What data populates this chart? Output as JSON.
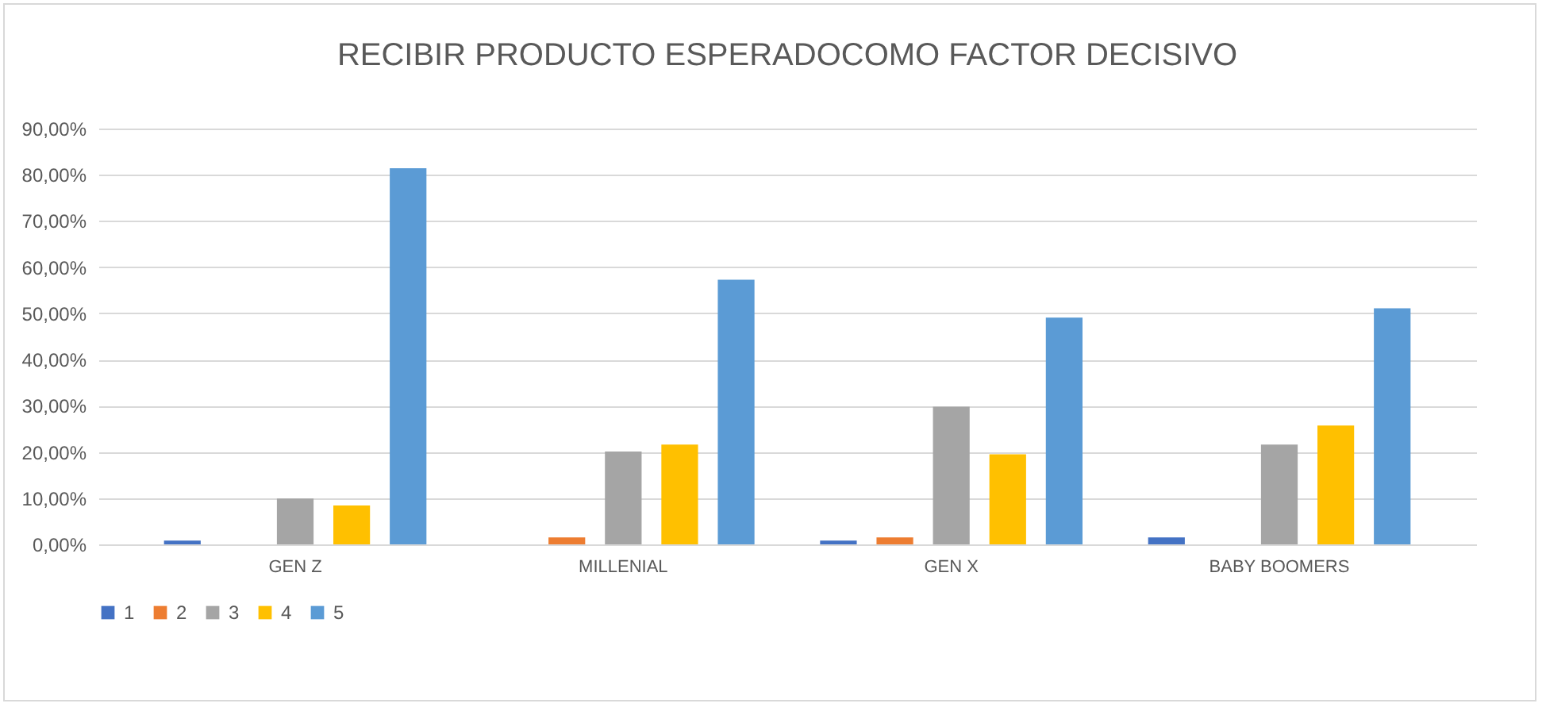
{
  "chart_data": {
    "type": "bar",
    "title": "RECIBIR PRODUCTO ESPERADOCOMO FACTOR DECISIVO",
    "categories": [
      "GEN Z",
      "MILLENIAL",
      "GEN X",
      "BABY BOOMERS"
    ],
    "series": [
      {
        "name": "1",
        "color": "#4472c4",
        "values": [
          0.8,
          0,
          0.8,
          1.5
        ]
      },
      {
        "name": "2",
        "color": "#ed7d31",
        "values": [
          0,
          1.5,
          1.5,
          0
        ]
      },
      {
        "name": "3",
        "color": "#a5a5a5",
        "values": [
          9.9,
          20.1,
          29.8,
          21.6
        ]
      },
      {
        "name": "4",
        "color": "#ffc000",
        "values": [
          8.4,
          21.6,
          19.5,
          25.7
        ]
      },
      {
        "name": "5",
        "color": "#5b9bd5",
        "values": [
          81.4,
          57.3,
          49.1,
          51.1
        ]
      }
    ],
    "ylim": [
      0,
      90
    ],
    "yticks": [
      {
        "value": 0,
        "label": "0,00%"
      },
      {
        "value": 10,
        "label": "10,00%"
      },
      {
        "value": 20,
        "label": "20,00%"
      },
      {
        "value": 30,
        "label": "30,00%"
      },
      {
        "value": 40,
        "label": "40,00%"
      },
      {
        "value": 50,
        "label": "50,00%"
      },
      {
        "value": 60,
        "label": "60,00%"
      },
      {
        "value": 70,
        "label": "70,00%"
      },
      {
        "value": 80,
        "label": "80,00%"
      },
      {
        "value": 90,
        "label": "90,00%"
      }
    ],
    "grid": "y",
    "legend": "bottom"
  }
}
